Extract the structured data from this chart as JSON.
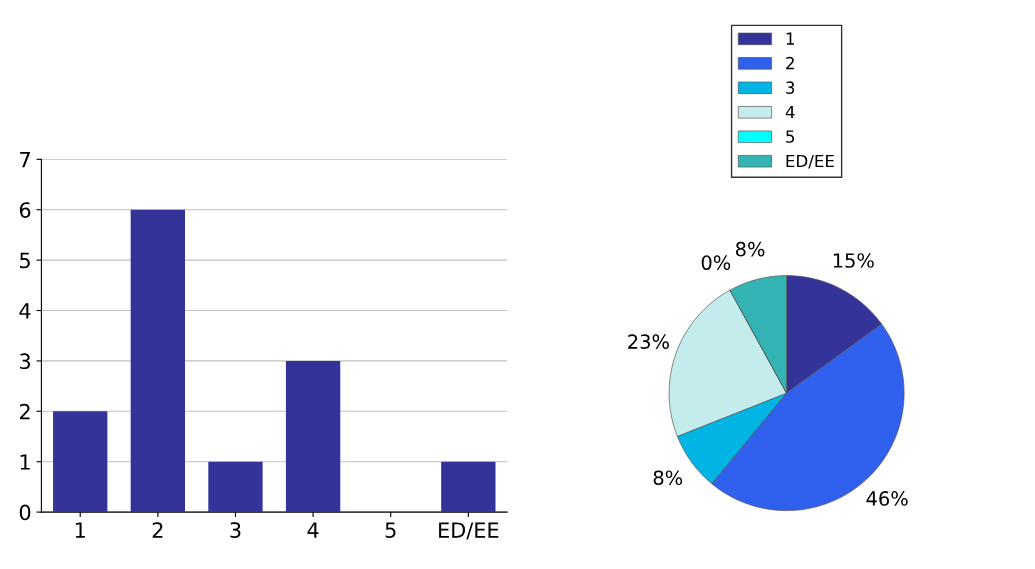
{
  "chart_data": [
    {
      "type": "bar",
      "categories": [
        "1",
        "2",
        "3",
        "4",
        "5",
        "ED/EE"
      ],
      "values": [
        2,
        6,
        1,
        3,
        0,
        1
      ],
      "color": "#333399",
      "ylim": [
        0,
        7
      ],
      "yticks": [
        0,
        1,
        2,
        3,
        4,
        5,
        6,
        7
      ],
      "grid": "y"
    },
    {
      "type": "pie",
      "categories": [
        "1",
        "2",
        "3",
        "4",
        "5",
        "ED/EE"
      ],
      "values": [
        15,
        46,
        8,
        23,
        0,
        8
      ],
      "colors": [
        "#333399",
        "#3060ee",
        "#00b4e4",
        "#c4ecec",
        "#00ffff",
        "#33b3b3"
      ],
      "value_labels": [
        "15%",
        "46%",
        "8%",
        "23%",
        "0%",
        "8%"
      ],
      "legend": "top"
    }
  ]
}
